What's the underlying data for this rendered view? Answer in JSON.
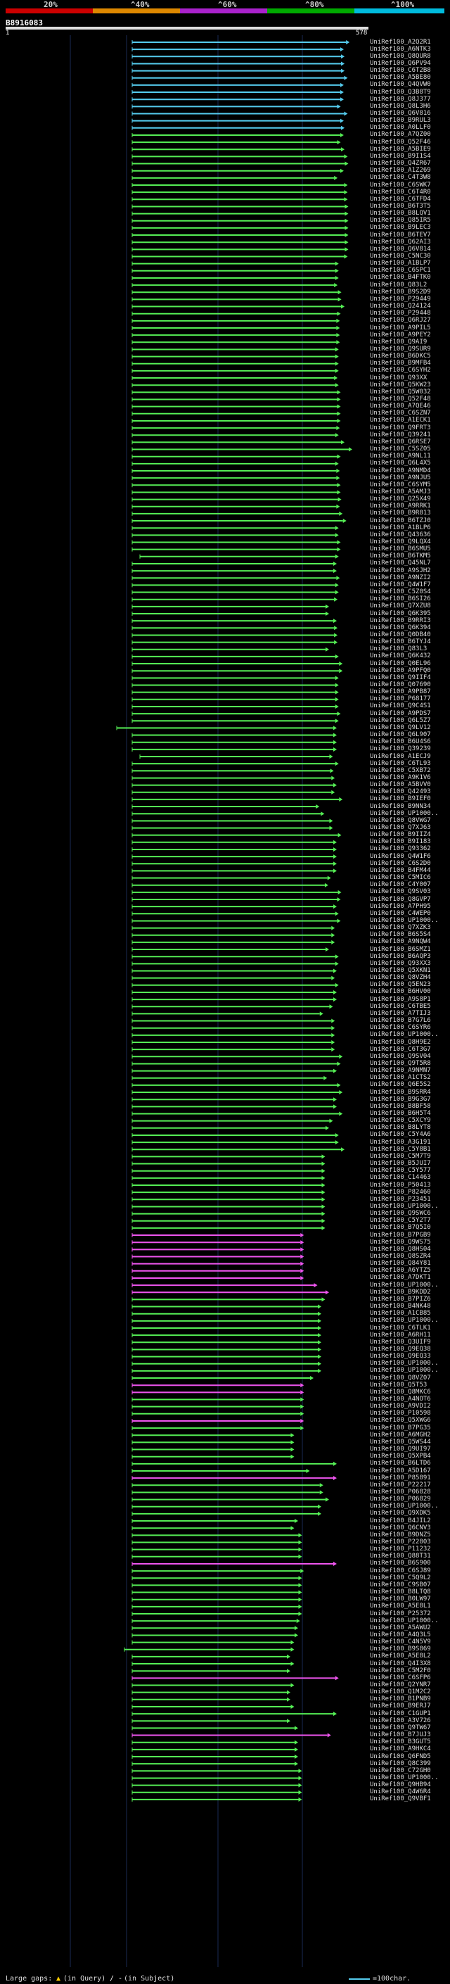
{
  "scale": {
    "labels": [
      "20%",
      "^40%",
      "^60%",
      "^80%",
      "^100%"
    ],
    "colors": [
      "#cc0000",
      "#dd8800",
      "#aa22cc",
      "#00aa00",
      "#00bbdd"
    ]
  },
  "query": {
    "id": "B8916083",
    "start_label": "1",
    "end_label": "578"
  },
  "hits": [
    [
      "UniRef100_A2Q2R1",
      "#55ccee",
      0,
      553
    ],
    [
      "UniRef100_A6NTK3",
      "#55ccee",
      0,
      538
    ],
    [
      "UniRef100_Q8QUR8",
      "#55ccee",
      0,
      540
    ],
    [
      "UniRef100_Q6PV94",
      "#55ccee",
      0,
      540
    ],
    [
      "UniRef100_C6T2B8",
      "#55ccee",
      0,
      540
    ],
    [
      "UniRef100_A5BE80",
      "#55ccee",
      0,
      548
    ],
    [
      "UniRef100_Q4QVW0",
      "#55ccee",
      0,
      538
    ],
    [
      "UniRef100_Q3B8T9",
      "#55ccee",
      0,
      538
    ],
    [
      "UniRef100_Q8J377",
      "#55ccee",
      0,
      538
    ],
    [
      "UniRef100_Q8L3H6",
      "#55ccee",
      0,
      530
    ],
    [
      "UniRef100_Q6V816",
      "#55ccee",
      0,
      548
    ],
    [
      "UniRef100_B9RUL3",
      "#55ccee",
      0,
      538
    ],
    [
      "UniRef100_A0LLF0",
      "#55ccee",
      0,
      540
    ],
    [
      "UniRef100_A7QZ00",
      "#55ee55",
      0,
      538
    ],
    [
      "UniRef100_Q52F46",
      "#55ee55",
      0,
      530
    ],
    [
      "UniRef100_A5BIE9",
      "#55ee55",
      0,
      540
    ],
    [
      "UniRef100_B9I1S4",
      "#55ee55",
      0,
      548
    ],
    [
      "UniRef100_Q4ZR67",
      "#55ee55",
      0,
      550
    ],
    [
      "UniRef100_A1Z269",
      "#55ee55",
      0,
      538
    ],
    [
      "UniRef100_C4T3W8",
      "#55ee55",
      0,
      522
    ],
    [
      "UniRef100_C6SWK7",
      "#55ee55",
      0,
      548
    ],
    [
      "UniRef100_C6T4R0",
      "#55ee55",
      0,
      548
    ],
    [
      "UniRef100_C6TFD4",
      "#55ee55",
      0,
      548
    ],
    [
      "UniRef100_B6T3T5",
      "#55ee55",
      0,
      550
    ],
    [
      "UniRef100_B8LQV1",
      "#55ee55",
      0,
      550
    ],
    [
      "UniRef100_Q85IR5",
      "#55ee55",
      0,
      550
    ],
    [
      "UniRef100_B9LEC3",
      "#55ee55",
      0,
      550
    ],
    [
      "UniRef100_B6TEV7",
      "#55ee55",
      0,
      550
    ],
    [
      "UniRef100_Q62AI3",
      "#55ee55",
      0,
      550
    ],
    [
      "UniRef100_Q6V814",
      "#55ee55",
      0,
      550
    ],
    [
      "UniRef100_C5NC30",
      "#55ee55",
      0,
      548
    ],
    [
      "UniRef100_A1BLP7",
      "#55ee55",
      0,
      525
    ],
    [
      "UniRef100_C6SPC1",
      "#55ee55",
      0,
      525
    ],
    [
      "UniRef100_B4FTK0",
      "#55ee55",
      0,
      525
    ],
    [
      "UniRef100_Q83L2",
      "#55ee55",
      0,
      522
    ],
    [
      "UniRef100_B9S2D9",
      "#55ee55",
      0,
      532
    ],
    [
      "UniRef100_P29449",
      "#55ee55",
      0,
      532
    ],
    [
      "UniRef100_Q24124",
      "#55ee55",
      0,
      540
    ],
    [
      "UniRef100_P29448",
      "#55ee55",
      0,
      530
    ],
    [
      "UniRef100_Q6RJ27",
      "#55ee55",
      0,
      528
    ],
    [
      "UniRef100_A9PIL5",
      "#55ee55",
      0,
      528
    ],
    [
      "UniRef100_A9PEY2",
      "#55ee55",
      0,
      528
    ],
    [
      "UniRef100_Q9AI9",
      "#55ee55",
      0,
      528
    ],
    [
      "UniRef100_Q9SUR9",
      "#55ee55",
      0,
      525
    ],
    [
      "UniRef100_B6DKC5",
      "#55ee55",
      0,
      525
    ],
    [
      "UniRef100_B9MFB4",
      "#55ee55",
      0,
      525
    ],
    [
      "UniRef100_C6SYH2",
      "#55ee55",
      0,
      525
    ],
    [
      "UniRef100_Q93XX",
      "#55ee55",
      0,
      522
    ],
    [
      "UniRef100_Q5KW23",
      "#55ee55",
      0,
      525
    ],
    [
      "UniRef100_Q5W032",
      "#55ee55",
      0,
      530
    ],
    [
      "UniRef100_Q52F48",
      "#55ee55",
      0,
      530
    ],
    [
      "UniRef100_A7QE46",
      "#55ee55",
      0,
      530
    ],
    [
      "UniRef100_C6SZN7",
      "#55ee55",
      0,
      530
    ],
    [
      "UniRef100_A1ECK1",
      "#55ee55",
      0,
      530
    ],
    [
      "UniRef100_Q9FRT3",
      "#55ee55",
      0,
      528
    ],
    [
      "UniRef100_Q39241",
      "#55ee55",
      0,
      525
    ],
    [
      "UniRef100_Q6RSE7",
      "#55ee55",
      0,
      540
    ],
    [
      "UniRef100_C5SZ05",
      "#55ee55",
      0,
      560
    ],
    [
      "UniRef100_A9NL11",
      "#55ee55",
      0,
      530
    ],
    [
      "UniRef100_Q6L4X5",
      "#55ee55",
      0,
      525
    ],
    [
      "UniRef100_A9NMD4",
      "#55ee55",
      0,
      528
    ],
    [
      "UniRef100_A9NJU5",
      "#55ee55",
      0,
      528
    ],
    [
      "UniRef100_C6SYM5",
      "#55ee55",
      0,
      530
    ],
    [
      "UniRef100_A5AMJ3",
      "#55ee55",
      0,
      530
    ],
    [
      "UniRef100_Q25X49",
      "#55ee55",
      0,
      532
    ],
    [
      "UniRef100_A9RRK1",
      "#55ee55",
      0,
      528
    ],
    [
      "UniRef100_B9R813",
      "#55ee55",
      0,
      535
    ],
    [
      "UniRef100_B6TZJ0",
      "#55ee55",
      0,
      545
    ],
    [
      "UniRef100_A1BLP6",
      "#55ee55",
      0,
      525
    ],
    [
      "UniRef100_Q43636",
      "#55ee55",
      0,
      525
    ],
    [
      "UniRef100_Q9LQX4",
      "#55ee55",
      0,
      530
    ],
    [
      "UniRef100_B6SMU5",
      "#55ee55",
      0,
      530
    ],
    [
      "UniRef100_B6TKM5",
      "#55ee55",
      20,
      525
    ],
    [
      "UniRef100_Q45NL7",
      "#55ee55",
      0,
      520
    ],
    [
      "UniRef100_A9SJH2",
      "#55ee55",
      0,
      520
    ],
    [
      "UniRef100_A9NZI2",
      "#55ee55",
      0,
      528
    ],
    [
      "UniRef100_Q4W1F7",
      "#55ee55",
      0,
      525
    ],
    [
      "UniRef100_C5Z0S4",
      "#55ee55",
      0,
      525
    ],
    [
      "UniRef100_B6SI26",
      "#55ee55",
      0,
      522
    ],
    [
      "UniRef100_Q7XZU8",
      "#55ee55",
      0,
      500
    ],
    [
      "UniRef100_Q6K395",
      "#55ee55",
      0,
      500
    ],
    [
      "UniRef100_B9RRI3",
      "#55ee55",
      0,
      520
    ],
    [
      "UniRef100_Q6K394",
      "#55ee55",
      0,
      522
    ],
    [
      "UniRef100_Q0DB40",
      "#55ee55",
      0,
      522
    ],
    [
      "UniRef100_B6TYJ4",
      "#55ee55",
      0,
      522
    ],
    [
      "UniRef100_Q83L3",
      "#55ee55",
      0,
      500
    ],
    [
      "UniRef100_Q6K432",
      "#55ee55",
      0,
      525
    ],
    [
      "UniRef100_Q0EL96",
      "#55ee55",
      0,
      535
    ],
    [
      "UniRef100_A9PFQ0",
      "#55ee55",
      0,
      535
    ],
    [
      "UniRef100_Q9IIF4",
      "#55ee55",
      0,
      525
    ],
    [
      "UniRef100_Q07690",
      "#55ee55",
      0,
      525
    ],
    [
      "UniRef100_A9PB87",
      "#55ee55",
      0,
      525
    ],
    [
      "UniRef100_P68177",
      "#55ee55",
      0,
      525
    ],
    [
      "UniRef100_Q9C4S1",
      "#55ee55",
      0,
      525
    ],
    [
      "UniRef100_A9PDS7",
      "#55ee55",
      0,
      530
    ],
    [
      "UniRef100_Q6L5Z7",
      "#55ee55",
      0,
      525
    ],
    [
      "UniRef100_Q9LV12",
      "#55ee55",
      -40,
      520
    ],
    [
      "UniRef100_Q6L907",
      "#55ee55",
      0,
      520
    ],
    [
      "UniRef100_B6U4S6",
      "#55ee55",
      0,
      520
    ],
    [
      "UniRef100_Q39239",
      "#55ee55",
      0,
      520
    ],
    [
      "UniRef100_A1ECJ9",
      "#55ee55",
      20,
      510
    ],
    [
      "UniRef100_C6TL93",
      "#55ee55",
      0,
      525
    ],
    [
      "UniRef100_C5XB72",
      "#55ee55",
      0,
      512
    ],
    [
      "UniRef100_A9K1V6",
      "#55ee55",
      0,
      515
    ],
    [
      "UniRef100_A5BVV0",
      "#55ee55",
      0,
      520
    ],
    [
      "UniRef100_Q42493",
      "#55ee55",
      0,
      515
    ],
    [
      "UniRef100_B9IEF0",
      "#55ee55",
      0,
      535
    ],
    [
      "UniRef100_B9NN34",
      "#55ee55",
      0,
      475
    ],
    [
      "UniRef100_UP1000..",
      "#55ee55",
      0,
      488
    ],
    [
      "UniRef100_Q8VWG7",
      "#55ee55",
      0,
      510
    ],
    [
      "UniRef100_Q7XJ63",
      "#55ee55",
      0,
      510
    ],
    [
      "UniRef100_B9IIZ4",
      "#55ee55",
      0,
      532
    ],
    [
      "UniRef100_B9I183",
      "#55ee55",
      0,
      520
    ],
    [
      "UniRef100_Q93362",
      "#55ee55",
      0,
      520
    ],
    [
      "UniRef100_Q4W1F6",
      "#55ee55",
      0,
      520
    ],
    [
      "UniRef100_C6S2D0",
      "#55ee55",
      0,
      520
    ],
    [
      "UniRef100_B4FM44",
      "#55ee55",
      0,
      520
    ],
    [
      "UniRef100_C5MIC6",
      "#55ee55",
      0,
      505
    ],
    [
      "UniRef100_C4Y007",
      "#55ee55",
      0,
      498
    ],
    [
      "UniRef100_Q9SV03",
      "#55ee55",
      0,
      532
    ],
    [
      "UniRef100_Q8GVP7",
      "#55ee55",
      0,
      530
    ],
    [
      "UniRef100_A7PH95",
      "#55ee55",
      0,
      520
    ],
    [
      "UniRef100_C4WEP0",
      "#55ee55",
      0,
      525
    ],
    [
      "UniRef100_UP1000..",
      "#55ee55",
      0,
      530
    ],
    [
      "UniRef100_Q7XZK3",
      "#55ee55",
      0,
      515
    ],
    [
      "UniRef100_B6S5S4",
      "#55ee55",
      0,
      515
    ],
    [
      "UniRef100_A9NQW4",
      "#55ee55",
      0,
      515
    ],
    [
      "UniRef100_B6SMZ1",
      "#55ee55",
      0,
      500
    ],
    [
      "UniRef100_B6AQP3",
      "#55ee55",
      0,
      525
    ],
    [
      "UniRef100_Q93XX3",
      "#55ee55",
      0,
      525
    ],
    [
      "UniRef100_Q5XKN1",
      "#55ee55",
      0,
      520
    ],
    [
      "UniRef100_Q8VZH4",
      "#55ee55",
      0,
      515
    ],
    [
      "UniRef100_Q5EN23",
      "#55ee55",
      0,
      525
    ],
    [
      "UniRef100_B6HV00",
      "#55ee55",
      0,
      520
    ],
    [
      "UniRef100_A9S8P1",
      "#55ee55",
      0,
      520
    ],
    [
      "UniRef100_C6TBE5",
      "#55ee55",
      0,
      510
    ],
    [
      "UniRef100_A7TIJ3",
      "#55ee55",
      0,
      485
    ],
    [
      "UniRef100_B7G7L6",
      "#55ee55",
      0,
      515
    ],
    [
      "UniRef100_C6SYR6",
      "#55ee55",
      0,
      515
    ],
    [
      "UniRef100_UP1000..",
      "#55ee55",
      0,
      515
    ],
    [
      "UniRef100_Q8H9E2",
      "#55ee55",
      0,
      515
    ],
    [
      "UniRef100_C6T3G7",
      "#55ee55",
      0,
      515
    ],
    [
      "UniRef100_Q9SV04",
      "#55ee55",
      0,
      535
    ],
    [
      "UniRef100_Q9T5R8",
      "#55ee55",
      0,
      530
    ],
    [
      "UniRef100_A9NMN7",
      "#55ee55",
      0,
      520
    ],
    [
      "UniRef100_A1CTS2",
      "#55ee55",
      0,
      495
    ],
    [
      "UniRef100_Q6E5S2",
      "#55ee55",
      0,
      530
    ],
    [
      "UniRef100_B9SRR4",
      "#55ee55",
      0,
      535
    ],
    [
      "UniRef100_B9G3G7",
      "#55ee55",
      0,
      520
    ],
    [
      "UniRef100_B8BF58",
      "#55ee55",
      0,
      520
    ],
    [
      "UniRef100_B6H5T4",
      "#55ee55",
      0,
      535
    ],
    [
      "UniRef100_C5XCY9",
      "#55ee55",
      0,
      510
    ],
    [
      "UniRef100_B8LYT8",
      "#55ee55",
      0,
      500
    ],
    [
      "UniRef100_C5Y4A6",
      "#55ee55",
      0,
      525
    ],
    [
      "UniRef100_A3G191",
      "#55ee55",
      0,
      525
    ],
    [
      "UniRef100_C5Y8B1",
      "#55ee55",
      0,
      540
    ],
    [
      "UniRef100_C5M7T9",
      "#55ee55",
      0,
      490
    ],
    [
      "UniRef100_B5JUI7",
      "#55ee55",
      0,
      490
    ],
    [
      "UniRef100_C5Y577",
      "#55ee55",
      0,
      490
    ],
    [
      "UniRef100_C14463",
      "#55ee55",
      0,
      490
    ],
    [
      "UniRef100_P50413",
      "#55ee55",
      0,
      490
    ],
    [
      "UniRef100_P82460",
      "#55ee55",
      0,
      490
    ],
    [
      "UniRef100_P23451",
      "#55ee55",
      0,
      490
    ],
    [
      "UniRef100_UP1000..",
      "#55ee55",
      0,
      490
    ],
    [
      "UniRef100_Q9SWC6",
      "#55ee55",
      0,
      490
    ],
    [
      "UniRef100_C5Y2T7",
      "#55ee55",
      0,
      490
    ],
    [
      "UniRef100_B7Q5I0",
      "#55ee55",
      0,
      490
    ],
    [
      "UniRef100_B7PGB9",
      "#ee55ee",
      0,
      435
    ],
    [
      "UniRef100_Q9WS75",
      "#ee55ee",
      0,
      435
    ],
    [
      "UniRef100_Q8HS04",
      "#ee55ee",
      0,
      435
    ],
    [
      "UniRef100_Q8SZR4",
      "#ee55ee",
      0,
      435
    ],
    [
      "UniRef100_Q84Y81",
      "#ee55ee",
      0,
      435
    ],
    [
      "UniRef100_A6YTZ5",
      "#ee55ee",
      0,
      435
    ],
    [
      "UniRef100_A7DKT1",
      "#ee55ee",
      0,
      435
    ],
    [
      "UniRef100_UP1000..",
      "#ee55ee",
      0,
      470
    ],
    [
      "UniRef100_B9KDD2",
      "#ee55ee",
      0,
      500
    ],
    [
      "UniRef100_B7PIZ6",
      "#55ee55",
      0,
      490
    ],
    [
      "UniRef100_B4NK48",
      "#55ee55",
      0,
      480
    ],
    [
      "UniRef100_A1CB85",
      "#55ee55",
      0,
      480
    ],
    [
      "UniRef100_UP1000..",
      "#55ee55",
      0,
      480
    ],
    [
      "UniRef100_C6TLK1",
      "#55ee55",
      0,
      480
    ],
    [
      "UniRef100_A6RH11",
      "#55ee55",
      0,
      480
    ],
    [
      "UniRef100_Q3UIF9",
      "#55ee55",
      0,
      480
    ],
    [
      "UniRef100_Q9EQ38",
      "#55ee55",
      0,
      480
    ],
    [
      "UniRef100_Q9EQ33",
      "#55ee55",
      0,
      480
    ],
    [
      "UniRef100_UP1000..",
      "#55ee55",
      0,
      480
    ],
    [
      "UniRef100_UP1000..",
      "#55ee55",
      0,
      480
    ],
    [
      "UniRef100_Q8VZ07",
      "#55ee55",
      0,
      460
    ],
    [
      "UniRef100_Q5T53",
      "#ee55ee",
      0,
      435
    ],
    [
      "UniRef100_Q8MKC6",
      "#ee55ee",
      0,
      435
    ],
    [
      "UniRef100_A4NOT6",
      "#55ee55",
      0,
      435
    ],
    [
      "UniRef100_A9VDI2",
      "#55ee55",
      0,
      435
    ],
    [
      "UniRef100_P10598",
      "#55ee55",
      0,
      435
    ],
    [
      "UniRef100_Q5XWG6",
      "#ee55ee",
      0,
      435
    ],
    [
      "UniRef100_B7PG35",
      "#55ee55",
      0,
      435
    ],
    [
      "UniRef100_A6MGH2",
      "#55ee55",
      0,
      410
    ],
    [
      "UniRef100_Q5WS44",
      "#55ee55",
      0,
      410
    ],
    [
      "UniRef100_Q9UI97",
      "#55ee55",
      0,
      410
    ],
    [
      "UniRef100_Q5XPB4",
      "#55ee55",
      0,
      410
    ],
    [
      "UniRef100_B6LTD6",
      "#55ee55",
      0,
      520
    ],
    [
      "UniRef100_A5D167",
      "#55ee55",
      0,
      450
    ],
    [
      "UniRef100_P85891",
      "#ee55ee",
      0,
      520
    ],
    [
      "UniRef100_P22217",
      "#55ee55",
      0,
      485
    ],
    [
      "UniRef100_P06828",
      "#55ee55",
      0,
      485
    ],
    [
      "UniRef100_P06829",
      "#55ee55",
      0,
      500
    ],
    [
      "UniRef100_UP1000..",
      "#55ee55",
      0,
      480
    ],
    [
      "UniRef100_Q9XDK5",
      "#55ee55",
      0,
      480
    ],
    [
      "UniRef100_B4JIL2",
      "#55ee55",
      0,
      420
    ],
    [
      "UniRef100_Q6CNV3",
      "#55ee55",
      0,
      410
    ],
    [
      "UniRef100_B9DNZ5",
      "#55ee55",
      0,
      430
    ],
    [
      "UniRef100_P22803",
      "#55ee55",
      0,
      430
    ],
    [
      "UniRef100_P11232",
      "#55ee55",
      0,
      430
    ],
    [
      "UniRef100_Q88T31",
      "#55ee55",
      0,
      430
    ],
    [
      "UniRef100_B6S900",
      "#ee55ee",
      0,
      520
    ],
    [
      "UniRef100_C6SJ89",
      "#55ee55",
      0,
      435
    ],
    [
      "UniRef100_C5Q9L2",
      "#55ee55",
      0,
      430
    ],
    [
      "UniRef100_C9SB07",
      "#55ee55",
      0,
      430
    ],
    [
      "UniRef100_B8LTQ8",
      "#55ee55",
      0,
      430
    ],
    [
      "UniRef100_B0LW97",
      "#55ee55",
      0,
      430
    ],
    [
      "UniRef100_A5E8L1",
      "#55ee55",
      0,
      430
    ],
    [
      "UniRef100_P25372",
      "#55ee55",
      0,
      430
    ],
    [
      "UniRef100_UP1000..",
      "#55ee55",
      0,
      425
    ],
    [
      "UniRef100_A5AWU2",
      "#55ee55",
      0,
      420
    ],
    [
      "UniRef100_A4Q3L5",
      "#55ee55",
      0,
      420
    ],
    [
      "UniRef100_C4N5V9",
      "#55ee55",
      0,
      410
    ],
    [
      "UniRef100_B9S869",
      "#55ee55",
      -20,
      410
    ],
    [
      "UniRef100_A5E8L2",
      "#55ee55",
      0,
      400
    ],
    [
      "UniRef100_Q4I3X8",
      "#55ee55",
      0,
      410
    ],
    [
      "UniRef100_C5M2F0",
      "#55ee55",
      0,
      400
    ],
    [
      "UniRef100_C6SFP6",
      "#ee55ee",
      0,
      525
    ],
    [
      "UniRef100_Q2YNR7",
      "#55ee55",
      0,
      410
    ],
    [
      "UniRef100_Q1M2C2",
      "#55ee55",
      0,
      400
    ],
    [
      "UniRef100_B1PNB9",
      "#55ee55",
      0,
      400
    ],
    [
      "UniRef100_B9ERJ7",
      "#55ee55",
      0,
      410
    ],
    [
      "UniRef100_C1GUP1",
      "#55ee55",
      0,
      520
    ],
    [
      "UniRef100_A3V726",
      "#55ee55",
      0,
      400
    ],
    [
      "UniRef100_Q9TW67",
      "#55ee55",
      0,
      420
    ],
    [
      "UniRef100_B7JUJ3",
      "#ee55ee",
      0,
      505
    ],
    [
      "UniRef100_B3GUT5",
      "#55ee55",
      0,
      420
    ],
    [
      "UniRef100_A9HKC4",
      "#55ee55",
      0,
      420
    ],
    [
      "UniRef100_Q6FND5",
      "#55ee55",
      0,
      420
    ],
    [
      "UniRef100_Q8C399",
      "#55ee55",
      0,
      420
    ],
    [
      "UniRef100_C72GH0",
      "#55ee55",
      0,
      430
    ],
    [
      "UniRef100_UP1000..",
      "#55ee55",
      0,
      430
    ],
    [
      "UniRef100_Q9HB94",
      "#55ee55",
      0,
      430
    ],
    [
      "UniRef100_Q4W6R4",
      "#55ee55",
      0,
      430
    ],
    [
      "UniRef100_Q9VBF1",
      "#55ee55",
      0,
      430
    ]
  ],
  "legend": {
    "large_gaps": "Large gaps:",
    "in_query": "(in Query)",
    "in_subject": "(in Subject)",
    "scale_note": "=100char."
  }
}
